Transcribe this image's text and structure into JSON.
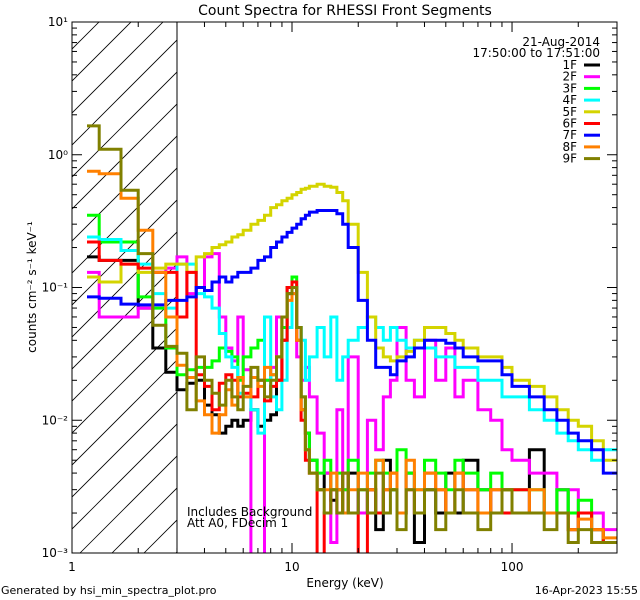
{
  "chart_data": {
    "type": "line",
    "title": "Count Spectra for RHESSI Front Segments",
    "xlabel": "Energy (keV)",
    "ylabel": "counts cm⁻² s⁻¹ keV⁻¹",
    "xscale": "log",
    "yscale": "log",
    "xlim": [
      1,
      300
    ],
    "ylim": [
      0.001,
      10
    ],
    "xticks": [
      {
        "value": 1,
        "label": "1"
      },
      {
        "value": 10,
        "label": "10"
      },
      {
        "value": 100,
        "label": "100"
      }
    ],
    "yticks": [
      {
        "value": 0.001,
        "label": "10⁻³"
      },
      {
        "value": 0.01,
        "label": "10⁻²"
      },
      {
        "value": 0.1,
        "label": "10⁻¹"
      },
      {
        "value": 1,
        "label": "10⁰"
      },
      {
        "value": 10,
        "label": "10¹"
      }
    ],
    "shaded_region_keV": [
      1,
      3
    ],
    "date": "21-Aug-2014",
    "time_range": "17:50:00 to 17:51:00",
    "annotations": [
      "Includes Background",
      "Att A0, FDecim 1"
    ],
    "legend_position": "top-right",
    "energy_bin_edges_keV": [
      1.17,
      1.33,
      1.67,
      2.0,
      2.33,
      2.67,
      3.0,
      3.33,
      3.67,
      4.0,
      4.33,
      4.67,
      5.0,
      5.33,
      5.67,
      6.0,
      6.5,
      7.0,
      7.5,
      8.0,
      8.5,
      9.0,
      9.5,
      10,
      10.5,
      11,
      11.5,
      12,
      13,
      14,
      15,
      16,
      17,
      18,
      20,
      22,
      24,
      26,
      28,
      30,
      33,
      36,
      40,
      45,
      50,
      55,
      60,
      70,
      80,
      90,
      100,
      120,
      140,
      160,
      180,
      200,
      230,
      260,
      300
    ],
    "series": [
      {
        "name": "1F",
        "color": "#000000",
        "values": [
          0.17,
          0.16,
          0.16,
          0.07,
          0.035,
          0.023,
          0.017,
          0.019,
          0.02,
          0.013,
          0.011,
          0.008,
          0.009,
          0.01,
          0.009,
          0.01,
          0.012,
          0.009,
          0.01,
          0.011,
          0.02,
          0.04,
          0.09,
          0.1,
          0.05,
          0.012,
          0.008,
          0.005,
          0.003,
          0.004,
          0.0025,
          0.003,
          0.002,
          0.004,
          0.002,
          0.003,
          0.0015,
          0.005,
          0.003,
          0.002,
          0.004,
          0.0012,
          0.003,
          0.002,
          0.004,
          0.002,
          0.005,
          0.003,
          0.002,
          0.003,
          0.002,
          0.006,
          0.002,
          0.003,
          0.0015,
          0.002,
          0.0015,
          0.0012
        ]
      },
      {
        "name": "2F",
        "color": "#ff00ff",
        "values": [
          0.13,
          0.06,
          0.06,
          0.07,
          0.13,
          0.14,
          0.17,
          0.09,
          0.1,
          0.17,
          0.18,
          0.06,
          0.035,
          0.028,
          0.06,
          0.024,
          0.0008,
          0.0008,
          0.02,
          0.025,
          0.06,
          0.05,
          0.1,
          0.09,
          0.03,
          0.02,
          0.025,
          0.015,
          0.008,
          0.004,
          0.0012,
          0.012,
          0.003,
          0.03,
          0.002,
          0.01,
          0.006,
          0.015,
          0.02,
          0.05,
          0.02,
          0.015,
          0.04,
          0.02,
          0.035,
          0.015,
          0.02,
          0.012,
          0.01,
          0.006,
          0.005,
          0.004,
          0.004,
          0.003,
          0.003,
          0.002,
          0.002,
          0.0015
        ]
      },
      {
        "name": "3F",
        "color": "#00ff00",
        "values": [
          0.35,
          0.22,
          0.22,
          0.085,
          0.07,
          0.035,
          0.022,
          0.024,
          0.025,
          0.025,
          0.028,
          0.035,
          0.033,
          0.03,
          0.02,
          0.03,
          0.035,
          0.04,
          0.02,
          0.022,
          0.03,
          0.05,
          0.1,
          0.12,
          0.05,
          0.015,
          0.008,
          0.005,
          0.004,
          0.005,
          0.003,
          0.004,
          0.003,
          0.005,
          0.003,
          0.004,
          0.005,
          0.004,
          0.003,
          0.006,
          0.004,
          0.003,
          0.005,
          0.004,
          0.003,
          0.005,
          0.004,
          0.003,
          0.004,
          0.003,
          0.003,
          0.003,
          0.002,
          0.003,
          0.002,
          0.0025,
          0.0015,
          0.0012
        ]
      },
      {
        "name": "4F",
        "color": "#00ffff",
        "values": [
          0.24,
          0.23,
          0.19,
          0.15,
          0.09,
          0.07,
          0.15,
          0.15,
          0.09,
          0.085,
          0.07,
          0.045,
          0.03,
          0.025,
          0.016,
          0.015,
          0.012,
          0.008,
          0.06,
          0.015,
          0.012,
          0.02,
          0.05,
          0.1,
          0.05,
          0.04,
          0.02,
          0.03,
          0.05,
          0.03,
          0.06,
          0.02,
          0.03,
          0.04,
          0.05,
          0.06,
          0.05,
          0.04,
          0.05,
          0.04,
          0.035,
          0.04,
          0.035,
          0.03,
          0.03,
          0.025,
          0.025,
          0.02,
          0.02,
          0.015,
          0.015,
          0.012,
          0.01,
          0.008,
          0.007,
          0.006,
          0.005,
          0.006
        ]
      },
      {
        "name": "5F",
        "color": "#d4d400",
        "values": [
          0.12,
          0.11,
          0.15,
          0.13,
          0.14,
          0.15,
          0.15,
          0.13,
          0.17,
          0.18,
          0.2,
          0.21,
          0.22,
          0.24,
          0.25,
          0.27,
          0.3,
          0.32,
          0.35,
          0.4,
          0.42,
          0.45,
          0.47,
          0.5,
          0.52,
          0.55,
          0.56,
          0.58,
          0.6,
          0.58,
          0.57,
          0.52,
          0.45,
          0.3,
          0.13,
          0.06,
          0.035,
          0.03,
          0.028,
          0.03,
          0.033,
          0.04,
          0.05,
          0.05,
          0.045,
          0.04,
          0.035,
          0.03,
          0.03,
          0.025,
          0.02,
          0.018,
          0.015,
          0.012,
          0.01,
          0.009,
          0.007,
          0.005
        ]
      },
      {
        "name": "6F",
        "color": "#ff0000",
        "values": [
          0.22,
          0.16,
          0.15,
          0.14,
          0.13,
          0.13,
          0.06,
          0.13,
          0.022,
          0.018,
          0.012,
          0.019,
          0.022,
          0.02,
          0.015,
          0.016,
          0.015,
          0.02,
          0.014,
          0.018,
          0.02,
          0.04,
          0.1,
          0.11,
          0.04,
          0.01,
          0.005,
          0.004,
          0.0008,
          0.002,
          0.003,
          0.002,
          0.004,
          0.002,
          0.0008,
          0.003,
          0.002,
          0.003,
          0.004,
          0.002,
          0.003,
          0.002,
          0.004,
          0.003,
          0.002,
          0.004,
          0.003,
          0.002,
          0.003,
          0.002,
          0.003,
          0.002,
          0.002,
          0.002,
          0.0015,
          0.002,
          0.0015,
          0.0012
        ]
      },
      {
        "name": "7F",
        "color": "#0000ff",
        "values": [
          0.085,
          0.083,
          0.075,
          0.074,
          0.074,
          0.08,
          0.08,
          0.085,
          0.1,
          0.095,
          0.11,
          0.12,
          0.11,
          0.12,
          0.13,
          0.13,
          0.14,
          0.16,
          0.17,
          0.2,
          0.22,
          0.24,
          0.26,
          0.28,
          0.3,
          0.33,
          0.35,
          0.37,
          0.38,
          0.38,
          0.38,
          0.36,
          0.3,
          0.2,
          0.08,
          0.04,
          0.025,
          0.025,
          0.022,
          0.028,
          0.03,
          0.035,
          0.04,
          0.04,
          0.038,
          0.035,
          0.03,
          0.028,
          0.028,
          0.022,
          0.018,
          0.015,
          0.012,
          0.01,
          0.008,
          0.007,
          0.006,
          0.004
        ]
      },
      {
        "name": "8F",
        "color": "#ff8000",
        "values": [
          0.75,
          0.72,
          0.47,
          0.27,
          0.13,
          0.06,
          0.026,
          0.021,
          0.014,
          0.011,
          0.008,
          0.011,
          0.017,
          0.013,
          0.021,
          0.015,
          0.021,
          0.018,
          0.025,
          0.022,
          0.03,
          0.06,
          0.08,
          0.09,
          0.04,
          0.012,
          0.006,
          0.004,
          0.003,
          0.003,
          0.004,
          0.003,
          0.002,
          0.003,
          0.004,
          0.003,
          0.005,
          0.003,
          0.004,
          0.002,
          0.005,
          0.003,
          0.004,
          0.003,
          0.002,
          0.004,
          0.003,
          0.002,
          0.003,
          0.003,
          0.002,
          0.003,
          0.002,
          0.002,
          0.0015,
          0.0018,
          0.0015,
          0.0013
        ]
      },
      {
        "name": "9F",
        "color": "#808000",
        "values": [
          1.65,
          1.1,
          0.54,
          0.18,
          0.052,
          0.036,
          0.032,
          0.012,
          0.03,
          0.02,
          0.016,
          0.013,
          0.02,
          0.015,
          0.012,
          0.018,
          0.025,
          0.02,
          0.015,
          0.02,
          0.03,
          0.06,
          0.09,
          0.1,
          0.05,
          0.015,
          0.006,
          0.004,
          0.003,
          0.002,
          0.003,
          0.002,
          0.004,
          0.002,
          0.003,
          0.002,
          0.004,
          0.002,
          0.003,
          0.0015,
          0.003,
          0.002,
          0.003,
          0.0015,
          0.002,
          0.003,
          0.002,
          0.0015,
          0.002,
          0.003,
          0.002,
          0.002,
          0.0015,
          0.002,
          0.0012,
          0.0015,
          0.0012,
          0.0012
        ]
      }
    ]
  },
  "footer": {
    "generated_by": "Generated by hsi_min_spectra_plot.pro",
    "timestamp": "16-Apr-2023 15:55"
  }
}
